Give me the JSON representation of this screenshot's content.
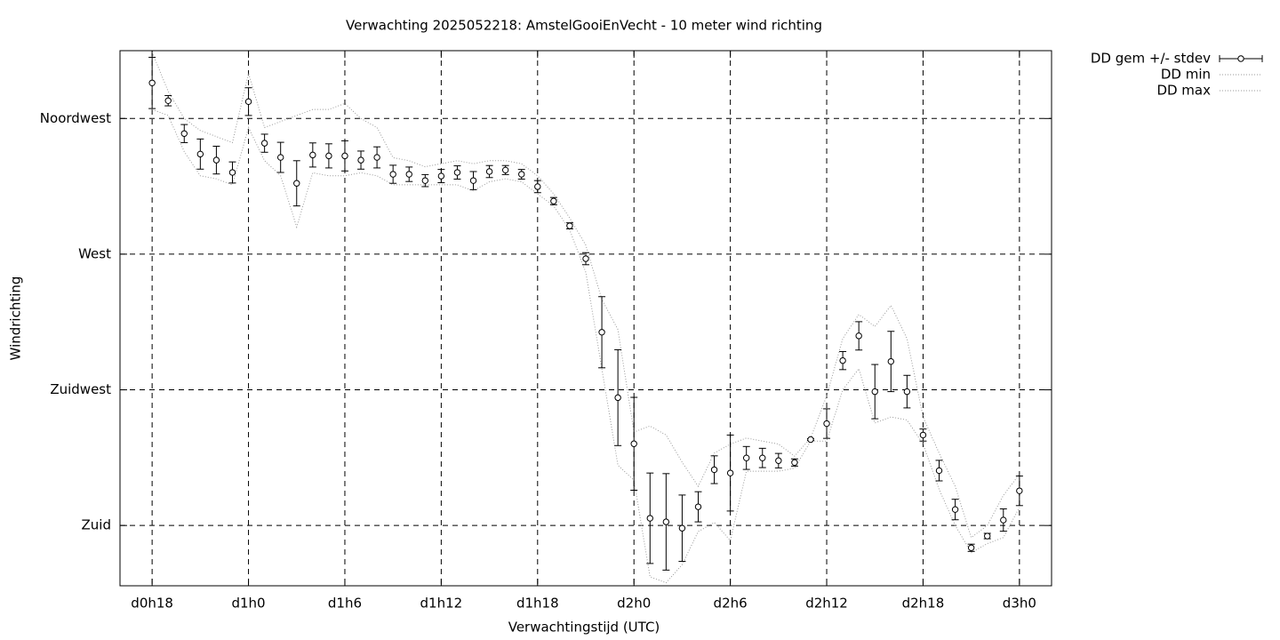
{
  "chart_data": {
    "type": "errorline",
    "title": "Verwachting 2025052218: AmstelGooiEnVecht - 10 meter wind richting",
    "x_label": "Verwachtingstijd (UTC)",
    "y_label": "Windrichting",
    "x": [
      18,
      19,
      20,
      21,
      22,
      23,
      24,
      25,
      26,
      27,
      28,
      29,
      30,
      31,
      32,
      33,
      34,
      35,
      36,
      37,
      38,
      39,
      40,
      41,
      42,
      43,
      44,
      45,
      46,
      47,
      48,
      49,
      50,
      51,
      52,
      53,
      54,
      55,
      56,
      57,
      58,
      59,
      60,
      61,
      62,
      63,
      64,
      65,
      66,
      67,
      68,
      69,
      70,
      71,
      72
    ],
    "series": [
      {
        "name": "DD gem +/- stdev",
        "color": "#000000",
        "values": [
          326.8,
          320.9,
          310,
          303.2,
          301.2,
          297.1,
          320.6,
          306.8,
          302.1,
          293.5,
          302.9,
          302.6,
          302.6,
          301.2,
          302.1,
          296.5,
          296.5,
          294.4,
          295.9,
          297.1,
          294.4,
          297.4,
          297.9,
          296.5,
          292.4,
          287.6,
          279.4,
          268.5,
          244.1,
          222.4,
          207.1,
          182.4,
          181.2,
          179.1,
          186.2,
          198.5,
          197.4,
          202.4,
          202.4,
          201.5,
          200.9,
          208.5,
          213.8,
          234.7,
          242.9,
          224.4,
          234.4,
          224.4,
          210,
          198.2,
          185.3,
          172.6,
          176.5,
          181.8,
          191.5
        ],
        "errors": [
          8.5,
          1.7,
          3,
          5,
          4.6,
          3.5,
          4.6,
          3,
          5,
          7.5,
          4,
          4,
          5,
          3,
          3.5,
          3,
          2.4,
          2,
          2.2,
          2.2,
          3,
          2,
          1.5,
          1.6,
          2,
          1.2,
          1,
          2,
          11.8,
          15.9,
          15.4,
          15,
          16,
          11,
          5,
          4.6,
          12.6,
          3.8,
          3.2,
          2.4,
          1.2,
          0.3,
          4.9,
          3,
          4.7,
          9,
          10,
          5.4,
          2,
          3.4,
          3.4,
          1.2,
          0.9,
          3.7,
          4.9
        ]
      },
      {
        "name": "DD min",
        "color": "#999999",
        "values": [
          318,
          316,
          304,
          296,
          295,
          293,
          312,
          301,
          296,
          279,
          297,
          296,
          296,
          297,
          296,
          293,
          293,
          293,
          293,
          293,
          291,
          294,
          295,
          294,
          290,
          286,
          278,
          264,
          232,
          200,
          195,
          163,
          161,
          167,
          178,
          181,
          175,
          198,
          198,
          198,
          199,
          208,
          208,
          225,
          232,
          214,
          216,
          215,
          207,
          192,
          180,
          171,
          174,
          176,
          186
        ]
      },
      {
        "name": "DD max",
        "color": "#999999",
        "values": [
          337,
          324,
          315,
          311,
          309,
          307,
          330,
          312,
          314,
          316,
          318,
          318,
          320,
          315,
          312,
          302,
          301,
          299,
          300,
          301,
          300,
          301,
          301,
          300,
          296,
          290,
          282,
          273,
          255,
          245,
          211,
          213,
          210,
          201,
          193,
          204,
          207,
          209,
          208,
          207,
          203,
          209,
          223,
          242,
          250,
          246,
          253,
          242,
          216,
          204,
          193,
          176,
          180,
          190,
          197
        ]
      }
    ],
    "xlim": [
      16,
      74
    ],
    "xticks": [
      {
        "value": 18,
        "label": "d0h18"
      },
      {
        "value": 24,
        "label": "d1h0"
      },
      {
        "value": 30,
        "label": "d1h6"
      },
      {
        "value": 36,
        "label": "d1h12"
      },
      {
        "value": 42,
        "label": "d1h18"
      },
      {
        "value": 48,
        "label": "d2h0"
      },
      {
        "value": 54,
        "label": "d2h6"
      },
      {
        "value": 60,
        "label": "d2h12"
      },
      {
        "value": 66,
        "label": "d2h18"
      },
      {
        "value": 72,
        "label": "d3h0"
      }
    ],
    "ylim": [
      160,
      337.5
    ],
    "yticks": [
      {
        "value": 180,
        "label": "Zuid"
      },
      {
        "value": 225,
        "label": "Zuidwest"
      },
      {
        "value": 270,
        "label": "West"
      },
      {
        "value": 315,
        "label": "Noordwest"
      }
    ],
    "grid": true,
    "legend": "outside-top-right"
  }
}
